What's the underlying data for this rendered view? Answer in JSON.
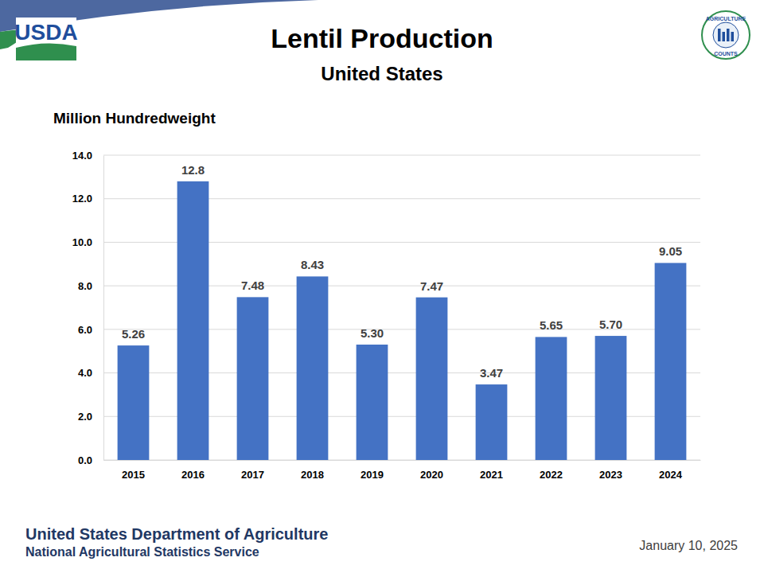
{
  "chart_data": {
    "type": "bar",
    "title": "Lentil Production",
    "subtitle": "United States",
    "y_label": "Million Hundredweight",
    "categories": [
      "2015",
      "2016",
      "2017",
      "2018",
      "2019",
      "2020",
      "2021",
      "2022",
      "2023",
      "2024"
    ],
    "values": [
      5.26,
      12.8,
      7.48,
      8.43,
      5.3,
      7.47,
      3.47,
      5.65,
      5.7,
      9.05
    ],
    "value_labels": [
      "5.26",
      "12.8",
      "7.48",
      "8.43",
      "5.30",
      "7.47",
      "3.47",
      "5.65",
      "5.70",
      "9.05"
    ],
    "color": "#4472c4",
    "ylim": [
      0,
      14
    ],
    "yticks": [
      {
        "value": 0,
        "label": "0.0"
      },
      {
        "value": 2,
        "label": "2.0"
      },
      {
        "value": 4,
        "label": "4.0"
      },
      {
        "value": 6,
        "label": "6.0"
      },
      {
        "value": 8,
        "label": "8.0"
      },
      {
        "value": 10,
        "label": "10.0"
      },
      {
        "value": 12,
        "label": "12.0"
      },
      {
        "value": 14,
        "label": "14.0"
      }
    ],
    "grid": true,
    "data_labels": true,
    "annotations": [
      "United States Department of Agriculture",
      "National Agricultural Statistics Service",
      "January 10, 2025",
      "USDA",
      "AGRICULTURE",
      "COUNTS"
    ]
  }
}
